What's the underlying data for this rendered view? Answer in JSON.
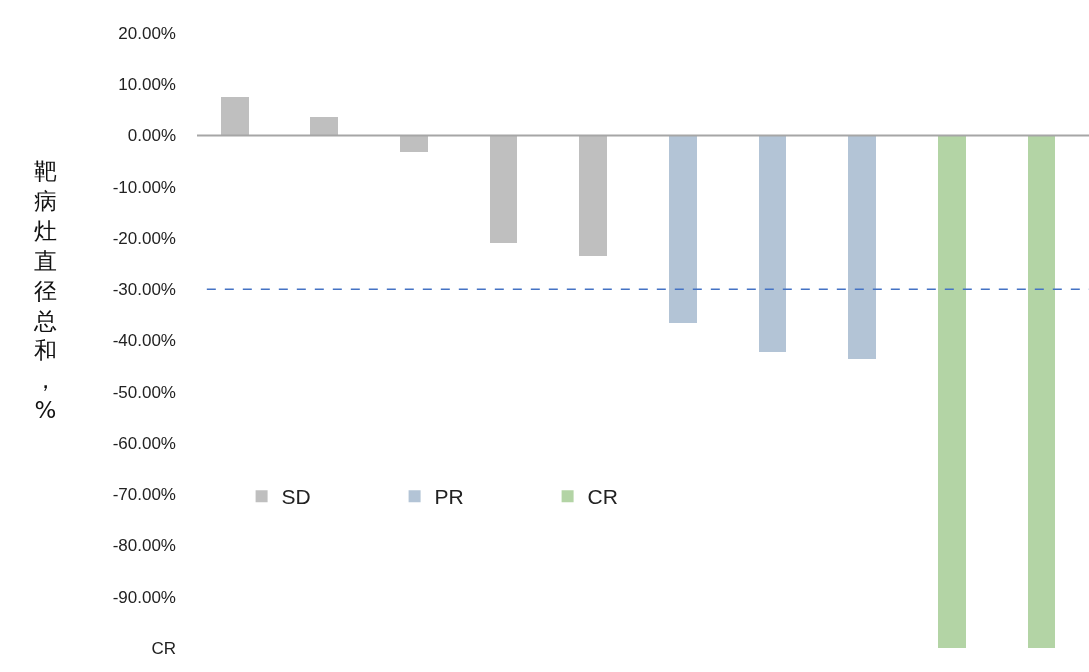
{
  "chart_data": {
    "type": "bar",
    "ylabel": "靶病灶直径总和，%",
    "categories": [
      null,
      null,
      null,
      null,
      null,
      null,
      null,
      null,
      null,
      null
    ],
    "series": [
      {
        "name": "SD",
        "color": "#bfbfbf",
        "values": [
          7.6,
          3.7,
          -3.3,
          -20.9,
          -23.6,
          null,
          null,
          null,
          null,
          null
        ]
      },
      {
        "name": "PR",
        "color": "#b3c4d6",
        "values": [
          null,
          null,
          null,
          null,
          null,
          -36.5,
          -42.3,
          -43.7,
          null,
          null
        ]
      },
      {
        "name": "CR",
        "color": "#b3d4a5",
        "values": [
          null,
          null,
          null,
          null,
          null,
          null,
          null,
          null,
          -100,
          -100
        ]
      }
    ],
    "ylim": [
      -100,
      20
    ],
    "yticks": [
      {
        "value": 20,
        "label": "20.00%"
      },
      {
        "value": 10,
        "label": "10.00%"
      },
      {
        "value": 0,
        "label": "0.00%"
      },
      {
        "value": -10,
        "label": "-10.00%"
      },
      {
        "value": -20,
        "label": "-20.00%"
      },
      {
        "value": -30,
        "label": "-30.00%"
      },
      {
        "value": -40,
        "label": "-40.00%"
      },
      {
        "value": -50,
        "label": "-50.00%"
      },
      {
        "value": -60,
        "label": "-60.00%"
      },
      {
        "value": -70,
        "label": "-70.00%"
      },
      {
        "value": -80,
        "label": "-80.00%"
      },
      {
        "value": -90,
        "label": "-90.00%"
      },
      {
        "value": -100,
        "label": "CR"
      }
    ],
    "ref_lines": [
      {
        "axis": "y",
        "value": -30,
        "color": "#4472c4",
        "line_style": "dashed"
      }
    ],
    "legend": "bottom left",
    "grid": false
  }
}
